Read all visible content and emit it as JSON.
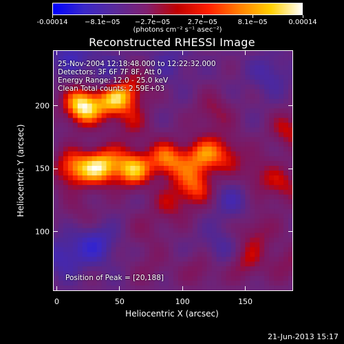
{
  "colorbar": {
    "tick_labels": [
      "-0.00014",
      "−8.1e−05",
      "−2.7e−05",
      "2.7e−05",
      "8.1e−05",
      "0.00014"
    ],
    "unit_label": "(photons cm⁻² s⁻¹ asec⁻²)",
    "range": [
      -0.00014,
      0.00014
    ],
    "colors": [
      "#0000ff",
      "#3a28c8",
      "#5a2a9a",
      "#802070",
      "#c00000",
      "#ff2000",
      "#ff8000",
      "#ffd000",
      "#ffffff"
    ]
  },
  "plot": {
    "title": "Reconstructed RHESSI Image",
    "info_lines": [
      "25-Nov-2004 12:18:48.000 to 12:22:32.000",
      "Detectors: 3F 6F 7F 8F, Att 0",
      "Energy Range: 12.0 - 25.0 keV",
      "Clean    Total counts: 2.59E+03"
    ],
    "peak_label": "Position of Peak = [20,188]",
    "date_stamp": "21-Jun-2013 15:17"
  },
  "chart_data": {
    "type": "heatmap",
    "title": "Reconstructed RHESSI Image",
    "xlabel": "Heliocentric X (arcsec)",
    "ylabel": "Heliocentric Y (arcsec)",
    "xlim": [
      -3,
      188
    ],
    "ylim": [
      53,
      244
    ],
    "x_ticks": [
      0,
      50,
      100,
      150
    ],
    "y_ticks": [
      100,
      150,
      200
    ],
    "x_tick_labels": [
      "0",
      "50",
      "100",
      "150"
    ],
    "y_tick_labels": [
      "100",
      "150",
      "200"
    ],
    "peak_position": [
      20,
      188
    ],
    "zlim": [
      -0.00014,
      0.00014
    ],
    "blobs": [
      {
        "x": 20,
        "y": 200,
        "v": 1.0
      },
      {
        "x": 45,
        "y": 205,
        "v": 0.75
      },
      {
        "x": 60,
        "y": 215,
        "v": 0.45
      },
      {
        "x": 12,
        "y": 150,
        "v": 0.7
      },
      {
        "x": 35,
        "y": 152,
        "v": 0.85
      },
      {
        "x": 60,
        "y": 150,
        "v": 0.8
      },
      {
        "x": 88,
        "y": 157,
        "v": 0.7
      },
      {
        "x": 115,
        "y": 160,
        "v": 0.6
      },
      {
        "x": 135,
        "y": 162,
        "v": 0.45
      },
      {
        "x": 160,
        "y": 145,
        "v": 0.35
      },
      {
        "x": 110,
        "y": 135,
        "v": 0.6
      },
      {
        "x": 90,
        "y": 120,
        "v": 0.35
      },
      {
        "x": 125,
        "y": 195,
        "v": 0.35
      },
      {
        "x": 60,
        "y": 185,
        "v": 0.3
      },
      {
        "x": 185,
        "y": 180,
        "v": 0.45
      },
      {
        "x": 182,
        "y": 135,
        "v": 0.4
      },
      {
        "x": 160,
        "y": 100,
        "v": 0.35
      },
      {
        "x": 150,
        "y": 75,
        "v": 0.4
      },
      {
        "x": 185,
        "y": 75,
        "v": 0.3
      },
      {
        "x": 115,
        "y": 70,
        "v": 0.3
      },
      {
        "x": 75,
        "y": 70,
        "v": 0.2
      },
      {
        "x": 20,
        "y": 115,
        "v": 0.2
      },
      {
        "x": 70,
        "y": 100,
        "v": 0.2
      },
      {
        "x": 40,
        "y": 225,
        "v": -0.4
      },
      {
        "x": 10,
        "y": 240,
        "v": -0.4
      },
      {
        "x": 30,
        "y": 90,
        "v": -0.5
      },
      {
        "x": 5,
        "y": 80,
        "v": -0.4
      },
      {
        "x": 140,
        "y": 125,
        "v": -0.3
      },
      {
        "x": 130,
        "y": 85,
        "v": -0.3
      },
      {
        "x": 170,
        "y": 225,
        "v": -0.3
      },
      {
        "x": 90,
        "y": 235,
        "v": -0.25
      }
    ]
  }
}
